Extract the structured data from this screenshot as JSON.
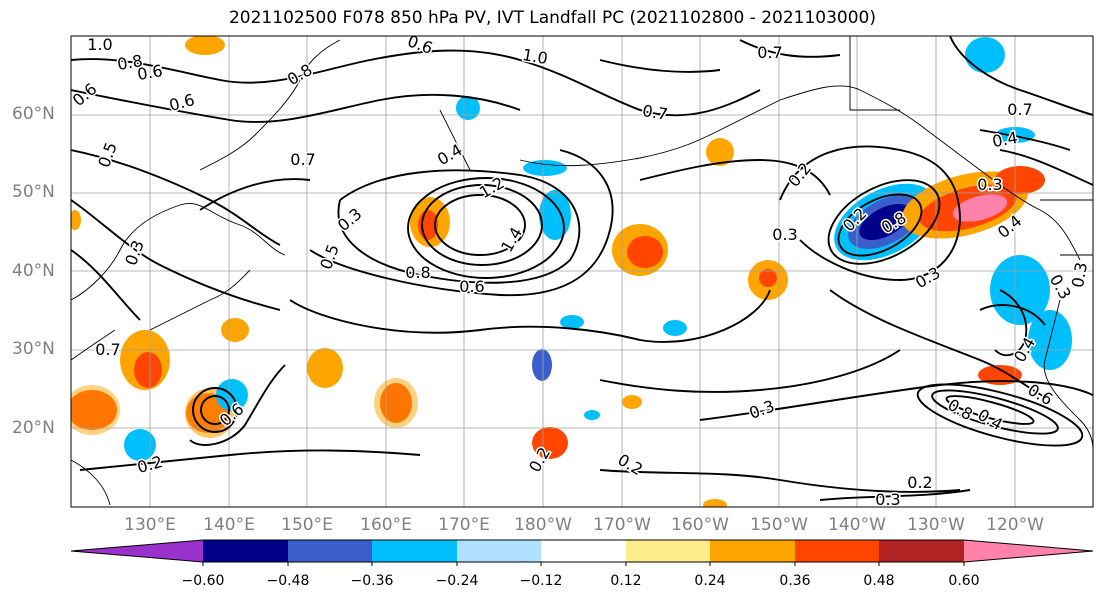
{
  "title": "2021102500 F078 850 hPa PV, IVT Landfall PC (2021102800 - 2021103000)",
  "lat_labels": [
    "60°N",
    "50°N",
    "40°N",
    "30°N",
    "20°N"
  ],
  "lon_labels": [
    "130°E",
    "140°E",
    "150°E",
    "160°E",
    "170°E",
    "180°W",
    "170°W",
    "160°W",
    "150°W",
    "140°W",
    "130°W",
    "120°W"
  ],
  "contour_labels": [
    "1.0",
    "0.8",
    "0.6",
    "0.6",
    "0.8",
    "1.0",
    "0.6",
    "0.7",
    "0.7",
    "0.6",
    "0.5",
    "0.7",
    "0.4",
    "0.4",
    "0.3",
    "0.7",
    "1.2",
    "1.4",
    "0.8",
    "0.6",
    "0.5",
    "0.3",
    "0.2",
    "0.2",
    "0.3",
    "0.4",
    "0.8",
    "0.3",
    "0.3",
    "0.3",
    "0.2",
    "0.6",
    "0.4",
    "0.7",
    "0.6",
    "0.3",
    "0.4",
    "0.2",
    "0.2",
    "0.3",
    "0.8",
    "0.2",
    "0.3"
  ],
  "colorbar": {
    "ticks": [
      "−0.60",
      "−0.48",
      "−0.36",
      "−0.24",
      "−0.12",
      "0.12",
      "0.24",
      "0.36",
      "0.48",
      "0.60"
    ],
    "colors": [
      "#9932cc",
      "#00008b",
      "#3a5fcd",
      "#00bfff",
      "#b0e2ff",
      "#ffffff",
      "#ffec8b",
      "#ffa500",
      "#ff4500",
      "#b22222",
      "#ff82ab"
    ]
  }
}
